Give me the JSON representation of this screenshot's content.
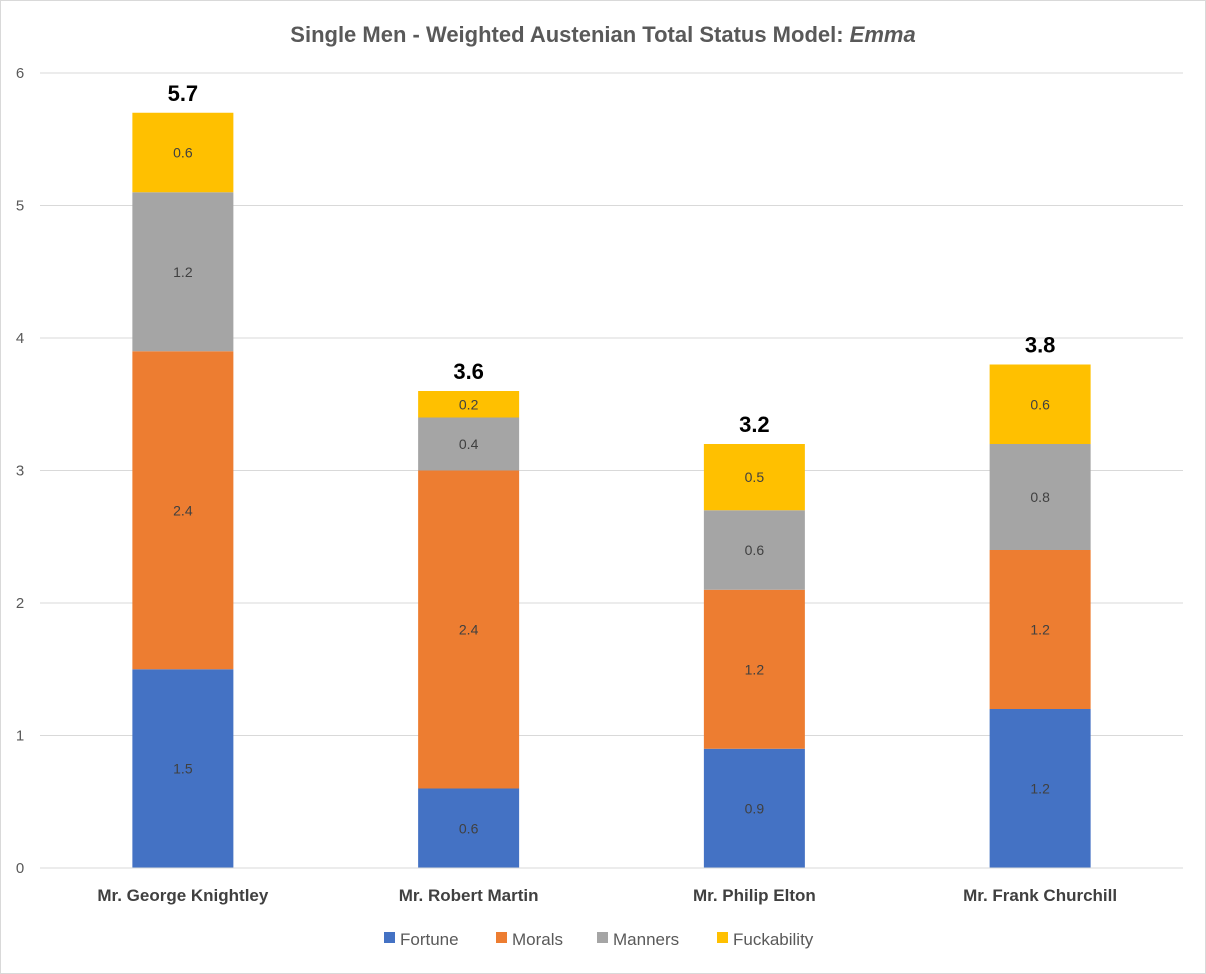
{
  "chart_data": {
    "type": "bar",
    "stacked": true,
    "title": "Single Men - Weighted Austenian Total Status Model: ",
    "title_italic": "Emma",
    "categories": [
      "Mr. George Knightley",
      "Mr. Robert Martin",
      "Mr. Philip Elton",
      "Mr. Frank Churchill"
    ],
    "series": [
      {
        "name": "Fortune",
        "color": "#4472C4",
        "values": [
          1.5,
          0.6,
          0.9,
          1.2
        ]
      },
      {
        "name": "Morals",
        "color": "#ED7D31",
        "values": [
          2.4,
          2.4,
          1.2,
          1.2
        ]
      },
      {
        "name": "Manners",
        "color": "#A5A5A5",
        "values": [
          1.2,
          0.4,
          0.6,
          0.8
        ]
      },
      {
        "name": "Fuckability",
        "color": "#FFC000",
        "values": [
          0.6,
          0.2,
          0.5,
          0.6
        ]
      }
    ],
    "totals": [
      5.7,
      3.6,
      3.2,
      3.8
    ],
    "yticks": [
      "0",
      "1",
      "2",
      "3",
      "4",
      "5",
      "6"
    ],
    "ylim": [
      0,
      6
    ],
    "grid": true,
    "legend": "bottom"
  }
}
